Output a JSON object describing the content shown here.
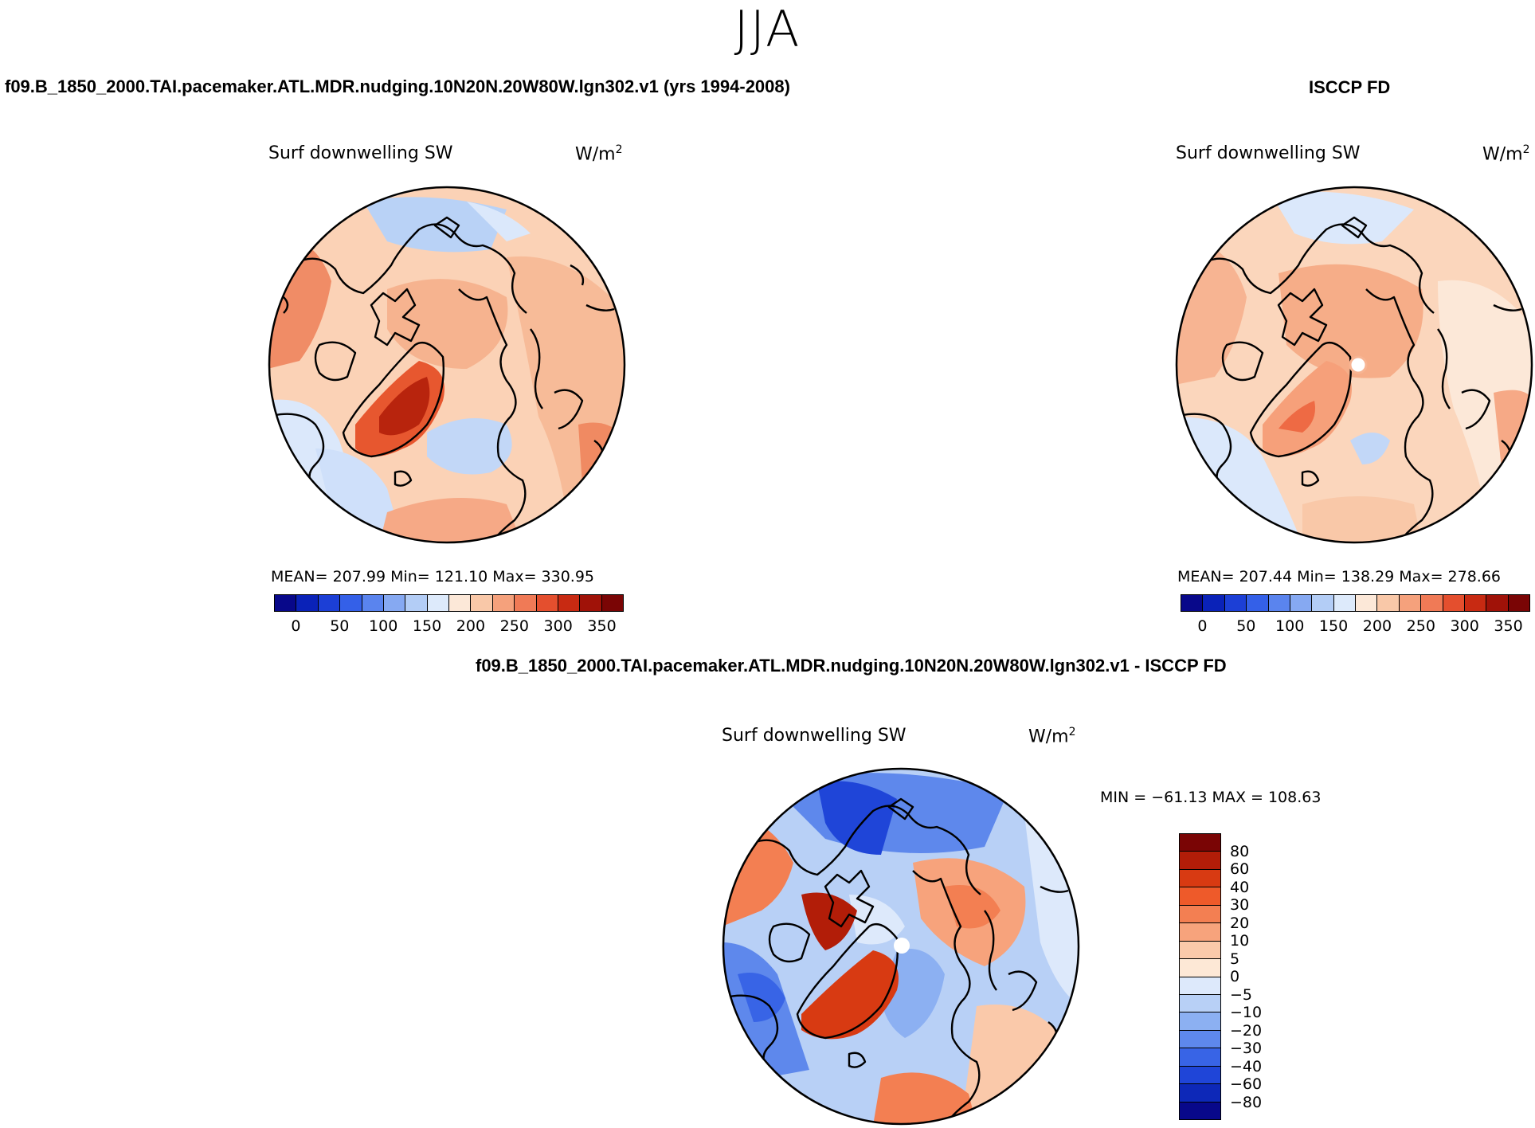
{
  "season": "JJA",
  "top_left": {
    "case_title": "f09.B_1850_2000.TAI.pacemaker.ATL.MDR.nudging.10N20N.20W80W.lgn302.v1 (yrs 1994-2008)",
    "variable": "Surf downwelling SW",
    "units_base": "W/m",
    "units_exp": "2",
    "stats": "MEAN= 207.99   Min= 121.10   Max= 330.95"
  },
  "top_right": {
    "case_title": "ISCCP FD",
    "variable": "Surf downwelling SW",
    "units_base": "W/m",
    "units_exp": "2",
    "stats": "MEAN= 207.44   Min= 138.29   Max= 278.66"
  },
  "bottom": {
    "case_title": "f09.B_1850_2000.TAI.pacemaker.ATL.MDR.nudging.10N20N.20W80W.lgn302.v1 - ISCCP FD",
    "variable": "Surf downwelling SW",
    "units_base": "W/m",
    "units_exp": "2",
    "minmax": "MIN = −61.13 MAX = 108.63"
  },
  "abs_colorbar": {
    "colors": [
      "#08088a",
      "#0a22b8",
      "#1c3fd6",
      "#3460e8",
      "#5a84ee",
      "#86a9f2",
      "#b3cdf6",
      "#ddeafb",
      "#fce8d8",
      "#f9c8a8",
      "#f5a17c",
      "#f07a56",
      "#e44f2e",
      "#c82a12",
      "#a01208",
      "#7a0505"
    ],
    "tick_labels": [
      "0",
      "50",
      "100",
      "150",
      "200",
      "250",
      "300",
      "350"
    ]
  },
  "diff_colorbar": {
    "colors": [
      "#7a0505",
      "#b21d08",
      "#d83a12",
      "#ee5a2a",
      "#f37f52",
      "#f7a37c",
      "#fac9aa",
      "#fde8d6",
      "#dde9fb",
      "#b8d0f6",
      "#8cb0f2",
      "#5e88ec",
      "#3864e6",
      "#1f45d8",
      "#0d28b8",
      "#08088a"
    ],
    "tick_labels": [
      "80",
      "60",
      "40",
      "30",
      "20",
      "10",
      "5",
      "0",
      "−5",
      "−10",
      "−20",
      "−30",
      "−40",
      "−60",
      "−80"
    ]
  }
}
